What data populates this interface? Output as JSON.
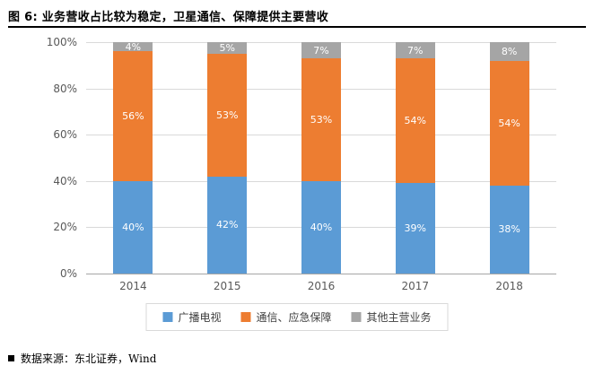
{
  "figure": {
    "title": "图 6: 业务营收占比较为稳定，卫星通信、保障提供主要营收",
    "source": "数据来源：东北证券，Wind"
  },
  "chart_data": {
    "type": "bar",
    "stacked": true,
    "percent_stacked": true,
    "title": "图 6: 业务营收占比较为稳定，卫星通信、保障提供主要营收",
    "categories": [
      "2014",
      "2015",
      "2016",
      "2017",
      "2018"
    ],
    "series": [
      {
        "name": "广播电视",
        "color": "#5B9BD5",
        "values": [
          40,
          42,
          40,
          39,
          38
        ]
      },
      {
        "name": "通信、应急保障",
        "color": "#ED7D31",
        "values": [
          56,
          53,
          53,
          54,
          54
        ]
      },
      {
        "name": "其他主营业务",
        "color": "#A5A5A5",
        "values": [
          4,
          5,
          7,
          7,
          8
        ]
      }
    ],
    "y_ticks": [
      "100%",
      "80%",
      "60%",
      "40%",
      "20%",
      "0%"
    ],
    "ylim": [
      0,
      100
    ],
    "xlabel": "",
    "ylabel": "",
    "grid": true,
    "legend_position": "bottom",
    "data_label_format": "{value}%"
  }
}
